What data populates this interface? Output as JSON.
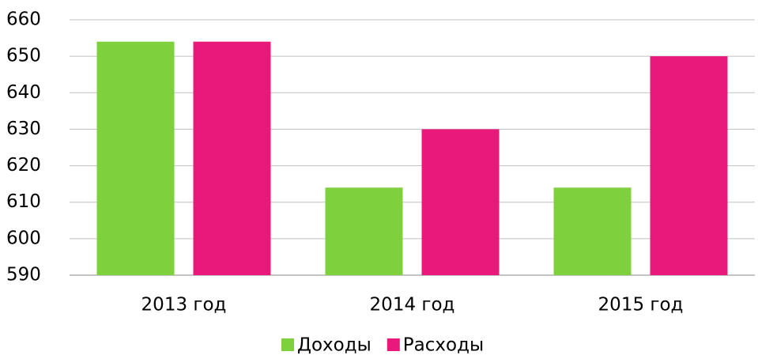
{
  "chart_data": {
    "type": "bar",
    "categories": [
      "2013 год",
      "2014 год",
      "2015 год"
    ],
    "series": [
      {
        "name": "Доходы",
        "color": "#7ed03d",
        "values": [
          654,
          614,
          614
        ]
      },
      {
        "name": "Расходы",
        "color": "#e8197a",
        "values": [
          654,
          630,
          650
        ]
      }
    ],
    "ylim": [
      590,
      660
    ],
    "yticks": [
      590,
      600,
      610,
      620,
      630,
      640,
      650,
      660
    ],
    "grid": true,
    "legend": "bottom"
  }
}
